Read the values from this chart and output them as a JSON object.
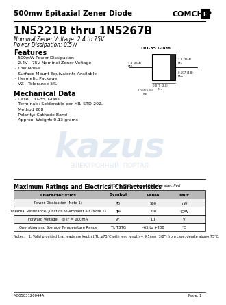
{
  "title_main": "500mw Epitaxial Zener Diode",
  "brand": "COMCHIP",
  "part_number": "1N5221B thru 1N5267B",
  "subtitle1": "Nominal Zener Voltage: 2.4 to 75V",
  "subtitle2": "Power Dissipation: 0.5W",
  "features_title": "Features",
  "features": [
    "- 500mW Power Dissipation",
    "- 2.4V - 75V Nominal Zener Voltage",
    "- Low Noise",
    "- Surface Mount Equivalents Available",
    "- Hermetic Package",
    "- VZ - Tolerance 5%"
  ],
  "mech_title": "Mechanical Data",
  "mech": [
    "- Case: DO-35, Glass",
    "- Terminals: Solderable per MIL-STD-202,",
    "  Method 208",
    "- Polarity: Cathode Band",
    "- Approx. Weight: 0.13 grams"
  ],
  "table_title": "Maximum Ratings and Electrical Characteristics",
  "table_subtitle": "@ TA = 25°C unless otherwise specified",
  "table_headers": [
    "Characteristics",
    "Symbol",
    "Value",
    "Unit"
  ],
  "table_rows": [
    [
      "Power Dissipation (Note 1)",
      "PD",
      "500",
      "mW"
    ],
    [
      "Thermal Resistance, Junction to Ambient Air (Note 1)",
      "θJA",
      "300",
      "°C/W"
    ],
    [
      "Forward Voltage    @ IF = 200mA",
      "VF",
      "1.1",
      "V"
    ],
    [
      "Operating and Storage Temperature Range",
      "TJ, TSTG",
      "-65 to +200",
      "°C"
    ]
  ],
  "note": "Notes:    1. Valid provided that leads are kept at TL ≤75°C with lead length = 9.5mm (3/8\") from case; derate above 75°C.",
  "doc_num": "MC0503120044A",
  "page": "Page: 1",
  "package": "DO-35 Glass",
  "bg_color": "#ffffff",
  "text_color": "#000000",
  "table_header_bg": "#d0d0d0",
  "table_border": "#000000",
  "watermark_color": "#c8d8e8",
  "watermark_text": "kazus",
  "watermark_sub": "ЭЛЕКТРОННЫЙ  ПОРТАЛ"
}
